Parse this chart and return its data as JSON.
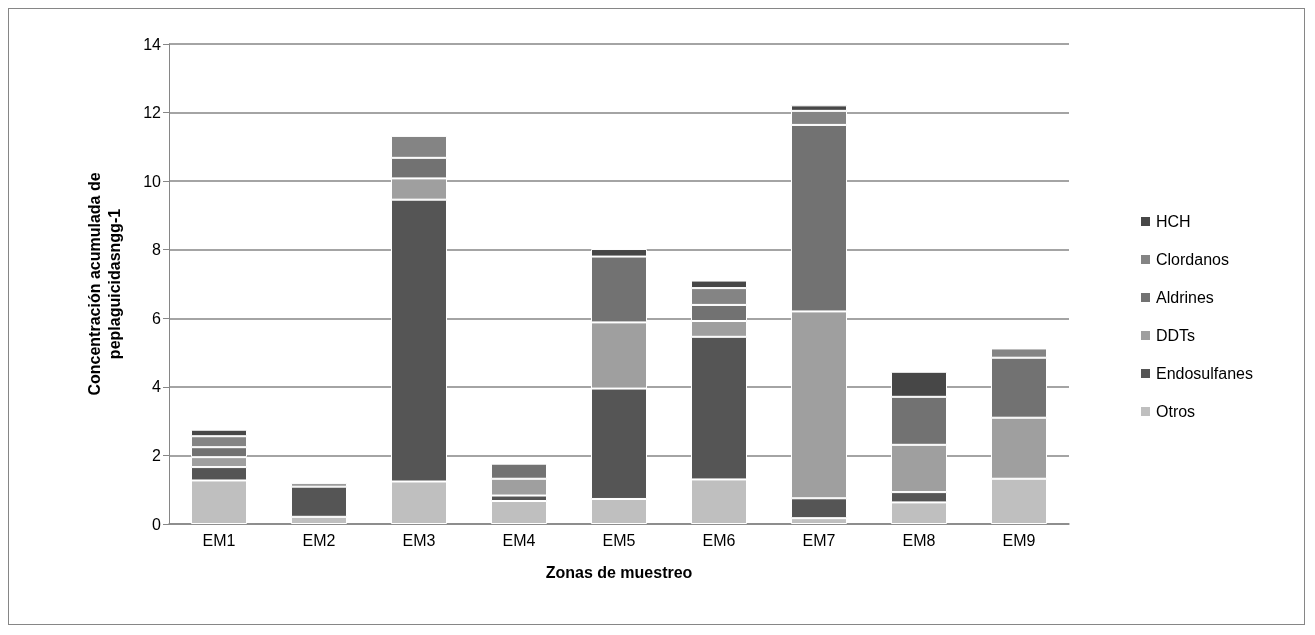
{
  "chart_data": {
    "type": "bar",
    "stacked": true,
    "xlabel": "Zonas de muestreo",
    "ylabel": "Concentración acumulada de\npeplaguicidasngg-1",
    "categories": [
      "EM1",
      "EM2",
      "EM3",
      "EM4",
      "EM5",
      "EM6",
      "EM7",
      "EM8",
      "EM9"
    ],
    "ylim": [
      0,
      14
    ],
    "yticks": [
      0,
      2,
      4,
      6,
      8,
      10,
      12,
      14
    ],
    "grid": "y",
    "legend": "right",
    "series": [
      {
        "name": "Otros",
        "color": "#bfbfbf",
        "values": [
          1.27,
          0.21,
          1.24,
          0.67,
          0.73,
          1.3,
          0.17,
          0.63,
          1.32
        ]
      },
      {
        "name": "Endosulfanes",
        "color": "#555555",
        "values": [
          0.39,
          0.88,
          8.22,
          0.16,
          3.22,
          4.16,
          0.58,
          0.3,
          null
        ]
      },
      {
        "name": "DDTs",
        "color": "#9f9f9f",
        "values": [
          0.29,
          null,
          0.62,
          0.49,
          1.93,
          0.46,
          5.45,
          1.38,
          1.78
        ]
      },
      {
        "name": "Aldrines",
        "color": "#727272",
        "values": [
          0.29,
          null,
          0.6,
          0.44,
          1.92,
          0.47,
          5.44,
          1.4,
          1.75
        ]
      },
      {
        "name": "Clordanos",
        "color": "#848484",
        "values": [
          0.32,
          0.1,
          0.64,
          null,
          null,
          0.49,
          0.41,
          null,
          0.27
        ]
      },
      {
        "name": "HCH",
        "color": "#474747",
        "values": [
          0.19,
          null,
          null,
          null,
          0.22,
          0.22,
          0.16,
          0.73,
          null
        ]
      }
    ]
  }
}
